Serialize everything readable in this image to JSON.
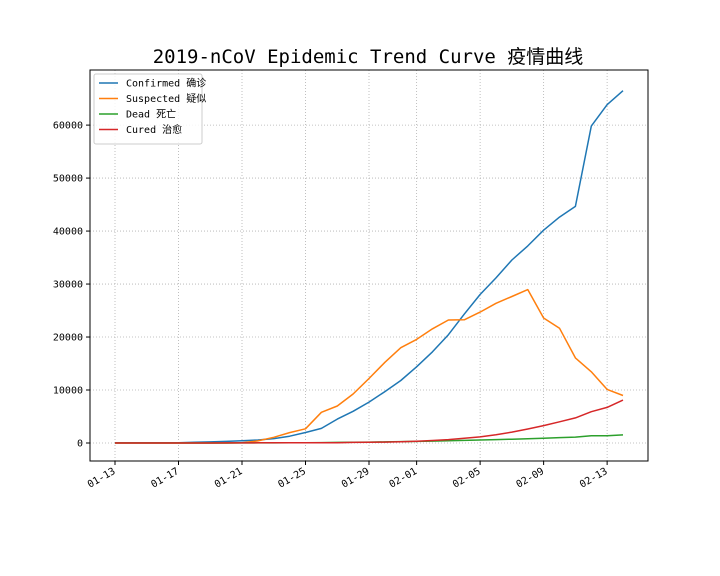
{
  "chart_data": {
    "type": "line",
    "title": "2019-nCoV Epidemic Trend Curve 疫情曲线",
    "xlabel": "",
    "ylabel": "",
    "x": [
      "01-13",
      "01-14",
      "01-15",
      "01-16",
      "01-17",
      "01-18",
      "01-19",
      "01-20",
      "01-21",
      "01-22",
      "01-23",
      "01-24",
      "01-25",
      "01-26",
      "01-27",
      "01-28",
      "01-29",
      "01-30",
      "01-31",
      "02-01",
      "02-02",
      "02-03",
      "02-04",
      "02-05",
      "02-06",
      "02-07",
      "02-08",
      "02-09",
      "02-10",
      "02-11",
      "02-12",
      "02-13",
      "02-14"
    ],
    "xticks": [
      "01-13",
      "01-17",
      "01-21",
      "01-25",
      "01-29",
      "02-01",
      "02-05",
      "02-09",
      "02-13"
    ],
    "yticks": [
      0,
      10000,
      20000,
      30000,
      40000,
      50000,
      60000
    ],
    "ylim": [
      -3400,
      70400
    ],
    "grid": true,
    "legend_position": "top-left",
    "series": [
      {
        "name": "Confirmed 确诊",
        "color": "#1f77b4",
        "values": [
          41,
          41,
          41,
          45,
          62,
          121,
          198,
          291,
          440,
          571,
          830,
          1287,
          1975,
          2744,
          4515,
          5974,
          7711,
          9692,
          11791,
          14380,
          17205,
          20438,
          24324,
          28018,
          31161,
          34546,
          37198,
          40171,
          42638,
          44653,
          59804,
          63851,
          66492
        ]
      },
      {
        "name": "Suspected 疑似",
        "color": "#ff7f0e",
        "values": [
          0,
          0,
          0,
          0,
          0,
          0,
          0,
          0,
          37,
          393,
          1072,
          1965,
          2684,
          5794,
          6973,
          9239,
          12167,
          15238,
          17988,
          19544,
          21558,
          23214,
          23260,
          24702,
          26359,
          27657,
          28942,
          23589,
          21675,
          16067,
          13435,
          10109,
          8969
        ]
      },
      {
        "name": "Dead 死亡",
        "color": "#2ca02c",
        "values": [
          1,
          1,
          1,
          2,
          2,
          3,
          3,
          6,
          9,
          17,
          25,
          41,
          56,
          80,
          106,
          132,
          170,
          213,
          259,
          304,
          361,
          425,
          490,
          563,
          636,
          722,
          811,
          908,
          1016,
          1113,
          1367,
          1380,
          1523
        ]
      },
      {
        "name": "Cured 治愈",
        "color": "#d62728",
        "values": [
          0,
          0,
          0,
          0,
          0,
          0,
          0,
          25,
          25,
          28,
          34,
          38,
          49,
          51,
          60,
          103,
          124,
          171,
          243,
          328,
          475,
          632,
          892,
          1153,
          1540,
          2050,
          2649,
          3281,
          3996,
          4740,
          5911,
          6723,
          8096
        ]
      }
    ]
  }
}
